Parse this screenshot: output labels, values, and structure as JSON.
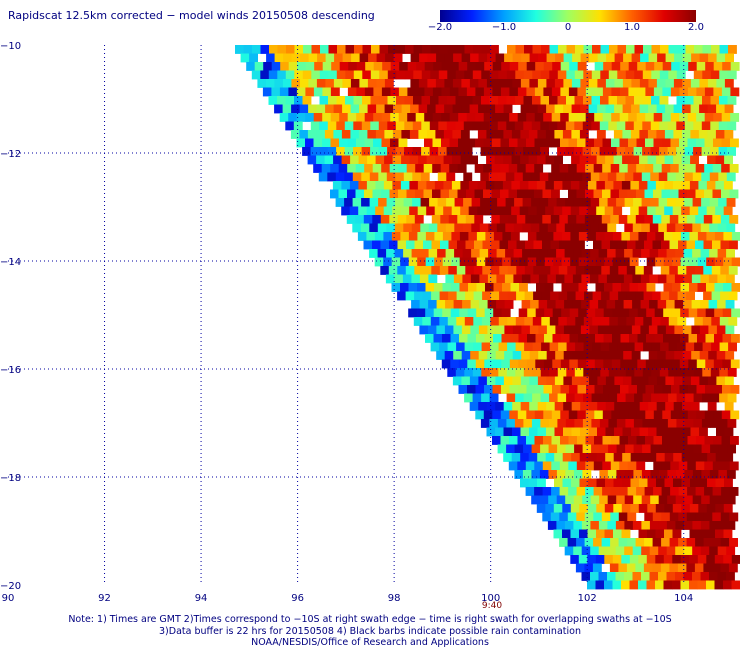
{
  "title": "Rapidscat 12.5km corrected − model winds 20150508 descending",
  "colorbar": {
    "min": -2.0,
    "max": 2.0,
    "ticks": [
      "−2.0",
      "−1.0",
      "0",
      "1.0",
      "2.0"
    ],
    "colors": [
      "#00008f",
      "#0020ff",
      "#00a0ff",
      "#20ffe0",
      "#a0ff60",
      "#ffe000",
      "#ff6000",
      "#e00000",
      "#8b0000"
    ]
  },
  "axes": {
    "lon_min": 90,
    "lon_max": 105,
    "lat_min": -20,
    "lat_max": -10,
    "x_ticks": [
      "90",
      "92",
      "94",
      "96",
      "98",
      "100",
      "102",
      "104"
    ],
    "y_ticks": [
      "−10",
      "−12",
      "−14",
      "−16",
      "−18",
      "−20"
    ],
    "grid": "dotted blue"
  },
  "swath_time": "9:40",
  "notes": [
    "Note: 1) Times are GMT 2)Times correspond to −10S at right swath edge − time is right swath for overlapping swaths at −10S",
    "3)Data buffer is 22 hrs for 20150508 4) Black barbs indicate possible rain contamination",
    "NOAA/NESDIS/Office of Research and Applications"
  ]
}
